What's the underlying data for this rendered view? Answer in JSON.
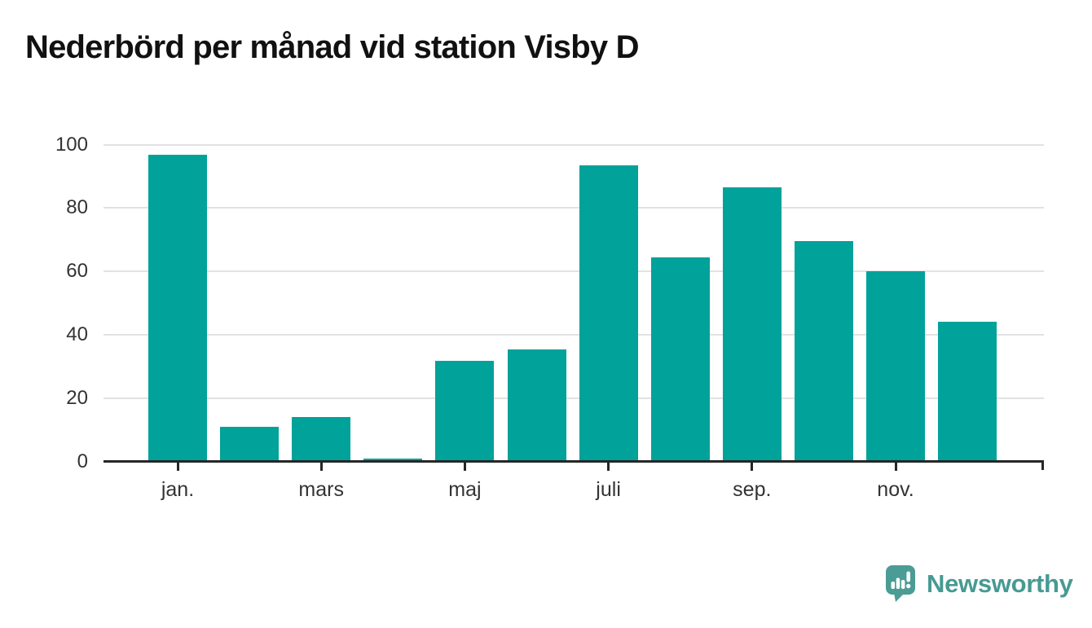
{
  "page": {
    "title": "Nederbörd per månad vid station Visby D"
  },
  "chart_data": {
    "type": "bar",
    "title": "Nederbörd per månad vid station Visby D",
    "values": [
      96.8,
      10.9,
      13.9,
      0.9,
      31.7,
      35.4,
      93.5,
      64.5,
      86.5,
      69.6,
      60.1,
      44.1
    ],
    "n_bars": 12,
    "x_tick_labels": [
      "jan.",
      "mars",
      "maj",
      "juli",
      "sep.",
      "nov."
    ],
    "x_tick_bar_indices": [
      0,
      2,
      4,
      6,
      8,
      10
    ],
    "y_ticks": [
      0,
      20,
      40,
      60,
      80,
      100
    ],
    "ylim": [
      0,
      100
    ],
    "xlabel": "",
    "ylabel": "",
    "grid": true,
    "legend": "none",
    "bar_color": "#00a29a"
  },
  "footer": {
    "brand": "Newsworthy"
  },
  "colors": {
    "bar": "#00a29a",
    "logo": "#4a9c94",
    "wordmark": "#479a92",
    "grid": "#e2e2e2",
    "axis": "#262626",
    "tick_label": "#333333",
    "title": "#111111"
  },
  "icons": {
    "logo_badge": "newsworthy-speech-bubble-barchart-icon"
  }
}
